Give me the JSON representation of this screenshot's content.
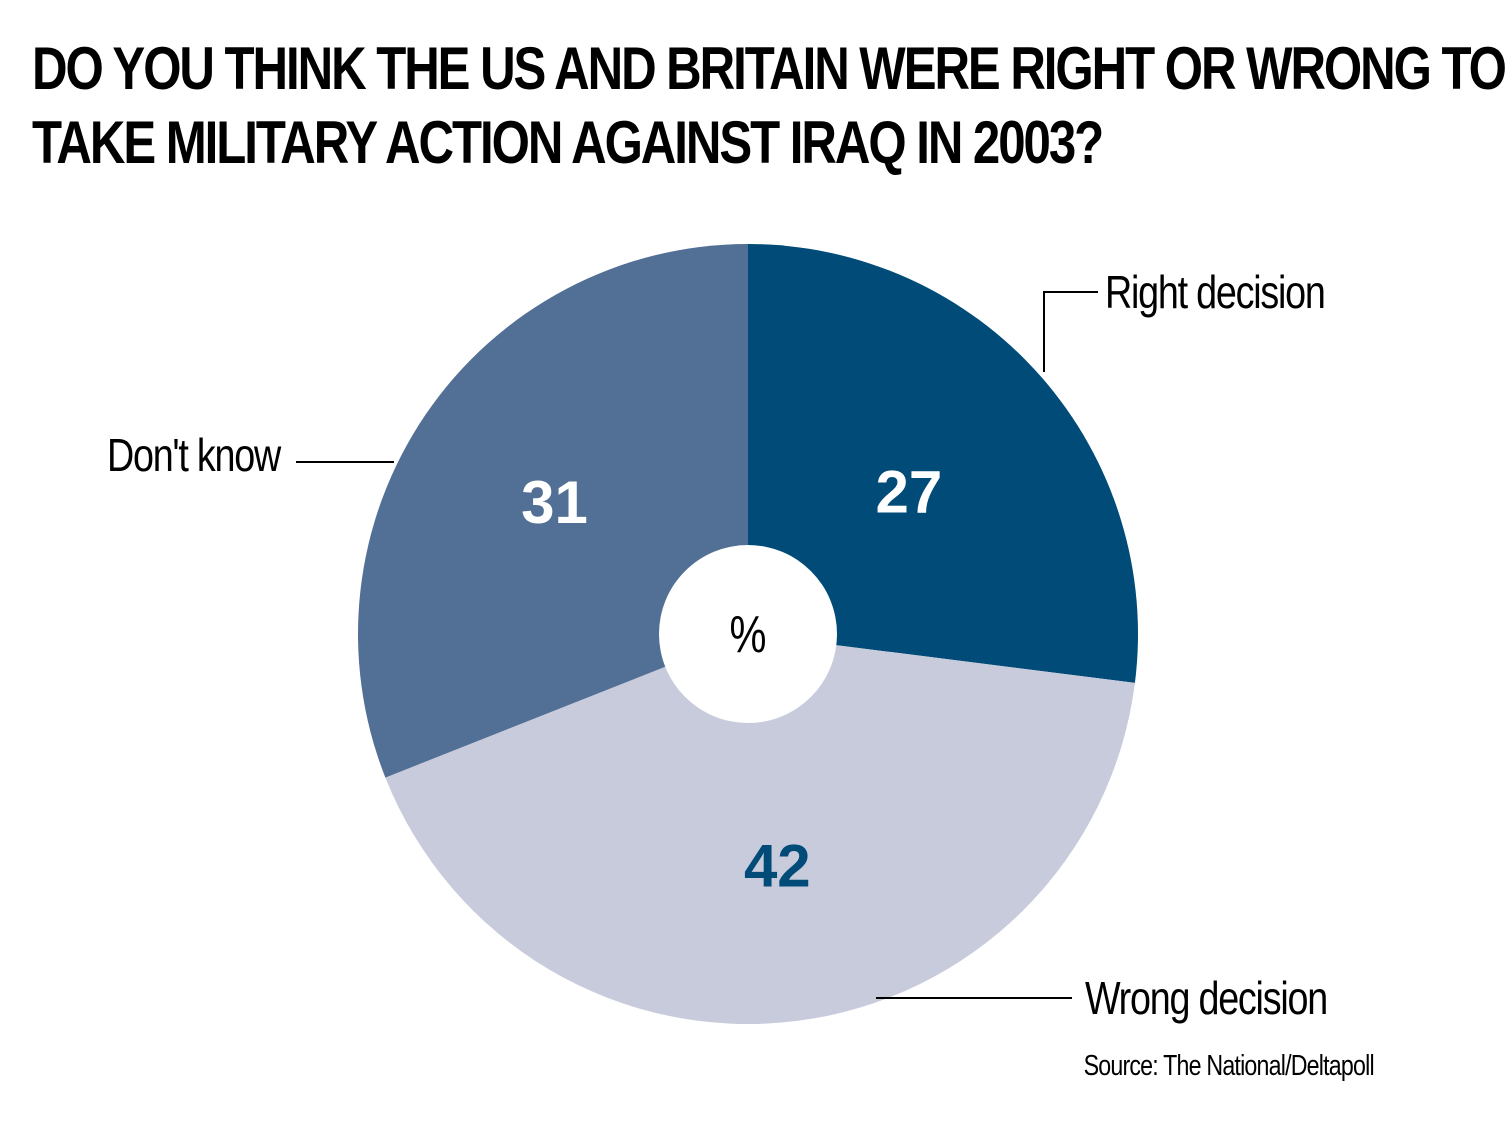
{
  "title": {
    "line1": "DO YOU THINK THE US AND BRITAIN WERE RIGHT OR WRONG TO",
    "line2": "TAKE MILITARY ACTION AGAINST IRAQ IN 2003?"
  },
  "source": "Source: The National/Deltapoll",
  "chart_data": {
    "type": "pie",
    "title": "DO YOU THINK THE US AND BRITAIN WERE RIGHT OR WRONG TO TAKE MILITARY ACTION AGAINST IRAQ IN 2003?",
    "center_label": "%",
    "slices": [
      {
        "label": "Right decision",
        "value": 27,
        "color": "#004b77",
        "label_color": "#ffffff"
      },
      {
        "label": "Wrong decision",
        "value": 42,
        "color": "#c7cbdc",
        "label_color": "#004b77"
      },
      {
        "label": "Don't know",
        "value": 31,
        "color": "#526f95",
        "label_color": "#ffffff"
      }
    ]
  }
}
